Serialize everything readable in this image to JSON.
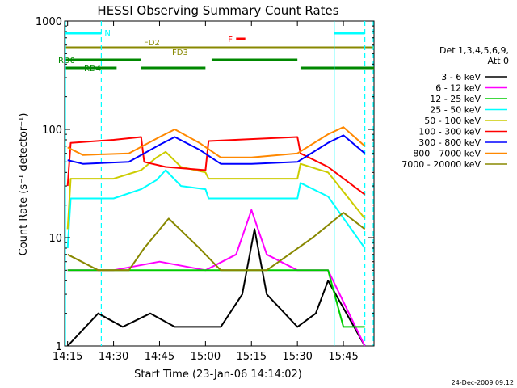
{
  "chart_data": {
    "type": "line",
    "title": "HESSI Observing Summary Count Rates",
    "xlabel": "Start Time (23-Jan-06 14:14:02)",
    "ylabel": "Count Rate (s⁻¹ detector⁻¹)",
    "yscale": "log",
    "xlim": [
      "14:14:02",
      "15:55"
    ],
    "ylim": [
      1,
      1000
    ],
    "xticks": [
      "14:15",
      "14:30",
      "14:45",
      "15:00",
      "15:15",
      "15:30",
      "15:45"
    ],
    "yticks": [
      "1",
      "10",
      "100",
      "1000"
    ],
    "legend_header": [
      "Det 1,3,4,5,6,9,",
      "Att 0"
    ],
    "legend_position": "right",
    "series": [
      {
        "name": "3 - 6 keV",
        "color": "#000000",
        "x": [
          "14:15",
          "14:25",
          "14:33",
          "14:42",
          "14:50",
          "15:05",
          "15:12",
          "15:16",
          "15:20",
          "15:30",
          "15:36",
          "15:40",
          "15:52"
        ],
        "y": [
          1,
          2,
          1.5,
          2,
          1.5,
          1.5,
          3,
          12,
          3,
          1.5,
          2,
          4,
          1
        ]
      },
      {
        "name": "6 - 12 keV",
        "color": "#ff00ff",
        "x": [
          "14:15",
          "14:30",
          "14:45",
          "15:00",
          "15:10",
          "15:15",
          "15:20",
          "15:30",
          "15:40",
          "15:52"
        ],
        "y": [
          5,
          5,
          6,
          5,
          7,
          18,
          7,
          5,
          5,
          1
        ]
      },
      {
        "name": "12 - 25 keV",
        "color": "#00cc00",
        "x": [
          "14:15",
          "14:30",
          "14:45",
          "15:00",
          "15:15",
          "15:30",
          "15:40",
          "15:45",
          "15:52"
        ],
        "y": [
          5,
          5,
          5,
          5,
          5,
          5,
          5,
          1.5,
          1.5
        ]
      },
      {
        "name": "25 - 50 keV",
        "color": "#00ffff",
        "x": [
          "14:15",
          "14:16",
          "14:30",
          "14:39",
          "14:44",
          "14:47",
          "14:52",
          "15:00",
          "15:01",
          "15:30",
          "15:31",
          "15:40",
          "15:52"
        ],
        "y": [
          8,
          23,
          23,
          28,
          34,
          42,
          30,
          28,
          23,
          23,
          32,
          24,
          8
        ]
      },
      {
        "name": "50 - 100 keV",
        "color": "#cccc00",
        "x": [
          "14:15",
          "14:16",
          "14:30",
          "14:39",
          "14:44",
          "14:47",
          "14:52",
          "15:00",
          "15:01",
          "15:30",
          "15:31",
          "15:40",
          "15:52"
        ],
        "y": [
          12,
          35,
          35,
          42,
          55,
          62,
          45,
          40,
          35,
          35,
          48,
          40,
          15
        ]
      },
      {
        "name": "100 - 300 keV",
        "color": "#ff0000",
        "x": [
          "14:15",
          "14:16",
          "14:30",
          "14:39",
          "14:40",
          "14:47",
          "15:00",
          "15:01",
          "15:30",
          "15:31",
          "15:40",
          "15:52"
        ],
        "y": [
          30,
          75,
          80,
          85,
          50,
          45,
          42,
          78,
          85,
          60,
          45,
          25
        ]
      },
      {
        "name": "300 - 800 keV",
        "color": "#0000ff",
        "x": [
          "14:15",
          "14:20",
          "14:35",
          "14:45",
          "14:50",
          "14:58",
          "15:05",
          "15:15",
          "15:30",
          "15:40",
          "15:45",
          "15:52"
        ],
        "y": [
          52,
          48,
          50,
          72,
          85,
          65,
          48,
          48,
          50,
          75,
          88,
          60
        ]
      },
      {
        "name": "800 - 7000 keV",
        "color": "#ff8800",
        "x": [
          "14:15",
          "14:20",
          "14:35",
          "14:45",
          "14:50",
          "14:58",
          "15:05",
          "15:15",
          "15:30",
          "15:40",
          "15:45",
          "15:52"
        ],
        "y": [
          68,
          58,
          60,
          85,
          100,
          75,
          55,
          55,
          60,
          90,
          105,
          70
        ]
      },
      {
        "name": "7000 - 20000 keV",
        "color": "#888800",
        "x": [
          "14:15",
          "14:25",
          "14:35",
          "14:40",
          "14:48",
          "14:58",
          "15:05",
          "15:20",
          "15:35",
          "15:45",
          "15:52"
        ],
        "y": [
          7,
          5,
          5,
          8,
          15,
          8,
          5,
          5,
          10,
          17,
          12
        ]
      }
    ],
    "flags": [
      {
        "label": "N",
        "color": "#00ffff",
        "segments": [
          [
            "14:14:02",
            "14:26"
          ],
          [
            "15:42",
            "15:52"
          ]
        ]
      },
      {
        "label": "F",
        "color": "#ff0000",
        "segments": [
          [
            "15:10",
            "15:13"
          ]
        ]
      },
      {
        "label": "FD2",
        "color": "#888800",
        "segments": [
          [
            "14:14:02",
            "14:47"
          ]
        ]
      },
      {
        "label": "FD3",
        "color": "#888800",
        "segments": [
          [
            "14:47",
            "15:55"
          ]
        ]
      },
      {
        "label": "RD0",
        "color": "#008800",
        "segments": [
          [
            "14:14:02",
            "14:39"
          ],
          [
            "15:02",
            "15:30"
          ]
        ]
      },
      {
        "label": "RD4",
        "color": "#008800",
        "segments": [
          [
            "14:14:02",
            "14:31"
          ],
          [
            "14:39",
            "15:00"
          ],
          [
            "15:31",
            "15:55"
          ]
        ]
      }
    ],
    "grid": false,
    "footer": "24-Dec-2009 09:12"
  }
}
